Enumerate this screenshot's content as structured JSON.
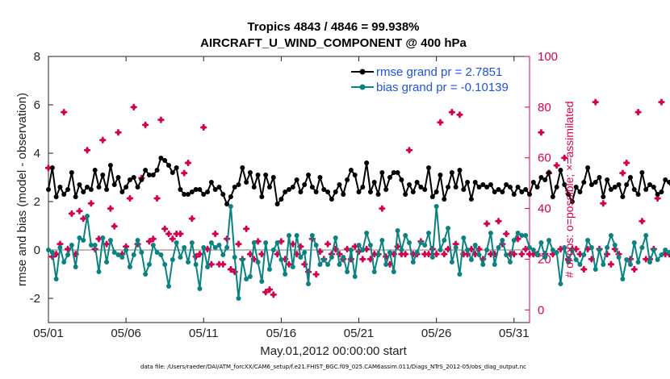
{
  "chart_data": {
    "type": "line",
    "title": "Tropics 4843 / 4846 = 99.938%",
    "subtitle": "AIRCRAFT_U_WIND_COMPONENT @ 400 hPa",
    "xlabel": "May.01,2012 00:00:00 start",
    "ylabel": "rmse and bias (model - observation)",
    "y2label": "# of obs: o=possible; ×=assimilated",
    "xlim": [
      1,
      32
    ],
    "ylim": [
      -3,
      8
    ],
    "y2lim": [
      -5,
      100
    ],
    "x_ticks": [
      1,
      6,
      11,
      16,
      21,
      26,
      31
    ],
    "x_tick_labels": [
      "05/01",
      "05/06",
      "05/11",
      "05/16",
      "05/21",
      "05/26",
      "05/31"
    ],
    "y_ticks": [
      "-2",
      "0",
      "2",
      "4",
      "6",
      "8"
    ],
    "y2_ticks": [
      "0",
      "20",
      "40",
      "60",
      "80",
      "100"
    ],
    "legend_position": "top-right",
    "series": [
      {
        "name": "rmse grand pr = 2.7851",
        "color": "#000000",
        "x_start": 1.0,
        "x_step": 0.25,
        "values": [
          2.5,
          3.4,
          2.2,
          2.6,
          2.3,
          2.5,
          3.2,
          2.2,
          2.7,
          2.4,
          2.6,
          2.5,
          3.3,
          2.6,
          3.1,
          2.5,
          3.5,
          2.7,
          3.0,
          2.4,
          2.6,
          2.9,
          3.0,
          2.6,
          2.9,
          3.3,
          3.1,
          3.1,
          3.3,
          3.8,
          3.7,
          3.5,
          3.2,
          3.4,
          2.5,
          2.3,
          2.3,
          2.4,
          2.5,
          2.5,
          2.3,
          2.4,
          2.8,
          2.5,
          2.6,
          2.3,
          1.9,
          2.2,
          2.6,
          2.7,
          3.4,
          2.8,
          3.2,
          2.6,
          3.1,
          2.2,
          3.1,
          2.6,
          3.0,
          1.9,
          2.1,
          2.4,
          2.5,
          2.6,
          2.9,
          2.4,
          2.7,
          3.1,
          2.6,
          2.4,
          3.0,
          2.5,
          2.4,
          2.1,
          2.4,
          2.7,
          2.3,
          2.9,
          3.3,
          3.1,
          2.4,
          2.6,
          3.6,
          2.4,
          2.8,
          2.3,
          3.2,
          2.5,
          3.0,
          3.2,
          3.2,
          2.9,
          2.3,
          2.7,
          2.4,
          2.8,
          2.6,
          2.5,
          3.4,
          2.2,
          2.4,
          3.1,
          2.1,
          2.6,
          3.2,
          2.6,
          3.3,
          2.5,
          2.8,
          2.1,
          2.8,
          2.6,
          2.7,
          2.6,
          2.7,
          2.4,
          2.5,
          2.4,
          2.7,
          2.6,
          2.3,
          2.6,
          2.4,
          2.5,
          2.3,
          2.8,
          2.6,
          3.0,
          2.9,
          3.2,
          2.2,
          2.6,
          3.3,
          2.7,
          2.3,
          2.0,
          2.6,
          2.4,
          2.8,
          3.4,
          2.7,
          2.8,
          3.0,
          2.2,
          2.9,
          2.5,
          2.6,
          2.7,
          2.2,
          2.7,
          3.0,
          2.5,
          2.3,
          3.2,
          2.5,
          2.7,
          2.6,
          2.3,
          2.4,
          2.9,
          2.8,
          2.4,
          2.9,
          2.8,
          2.4,
          3.1,
          2.5,
          3.2,
          2.9,
          3.4,
          2.8,
          3.8,
          2.9,
          3.0,
          2.7,
          2.5,
          3.5,
          3.7,
          3.0,
          3.2,
          3.9,
          3.0,
          3.6,
          3.2,
          2.7,
          2.1,
          2.3,
          2.2,
          2.5,
          2.6,
          2.6
        ]
      },
      {
        "name": "bias grand pr = -0.10139",
        "color": "#0a8282",
        "x_start": 1.0,
        "x_step": 0.25,
        "values": [
          0.0,
          -0.1,
          -1.2,
          0.1,
          -0.5,
          -0.2,
          0.2,
          -0.7,
          0.5,
          0.4,
          1.4,
          0.2,
          0.2,
          -0.9,
          0.5,
          -0.5,
          0.4,
          -0.1,
          -0.2,
          -0.3,
          0.0,
          -0.7,
          -0.2,
          0.4,
          -0.1,
          -1.0,
          -0.6,
          0.2,
          -0.1,
          -0.2,
          -0.6,
          -1.5,
          -0.4,
          0.3,
          -0.3,
          0.1,
          -0.5,
          0.3,
          -0.6,
          -1.6,
          0.1,
          -0.7,
          0.3,
          0.1,
          0.2,
          -0.2,
          0.1,
          1.8,
          -0.3,
          -2.0,
          -0.4,
          -1.2,
          -1.1,
          0.3,
          -0.5,
          -1.3,
          0.3,
          -0.8,
          0.0,
          0.3,
          -0.4,
          -1.0,
          0.6,
          -0.7,
          0.6,
          -0.3,
          -0.1,
          -1.4,
          0.6,
          0.2,
          -0.6,
          -0.4,
          -0.6,
          -0.3,
          0.5,
          -0.6,
          -0.3,
          -0.9,
          0.0,
          -1.1,
          0.2,
          0.0,
          0.7,
          0.2,
          -0.9,
          -0.2,
          0.4,
          -0.6,
          -0.1,
          -0.9,
          0.8,
          0.0,
          0.6,
          0.3,
          -0.5,
          -0.1,
          0.3,
          0.2,
          0.7,
          -0.3,
          1.8,
          0.0,
          0.4,
          0.9,
          -0.5,
          0.1,
          -1.0,
          0.5,
          0.0,
          -0.4,
          0.2,
          -0.2,
          -0.6,
          0.0,
          0.7,
          -0.6,
          0.1,
          0.4,
          -0.2,
          -0.5,
          0.4,
          0.7,
          0.6,
          0.6,
          0.1,
          0.0,
          -0.2,
          0.3,
          -0.3,
          0.4,
          0.0,
          -0.1,
          -1.4,
          0.1,
          -0.5,
          0.0,
          -0.4,
          -0.6,
          -0.2,
          0.4,
          0.1,
          -0.8,
          0.0,
          -0.6,
          0.1,
          0.6,
          0.2,
          -0.3,
          -1.2,
          -0.4,
          -0.6,
          0.3,
          -0.5,
          0.1,
          0.6,
          -0.5,
          0.0,
          -0.4,
          -0.2,
          0.0,
          -0.1,
          0.2,
          -0.4,
          1.4,
          0.1,
          -0.6,
          0.0,
          0.3,
          -0.2,
          -0.1,
          -0.3,
          1.4,
          0.8,
          0.2,
          -0.5,
          0.0,
          0.8,
          -0.4,
          -0.8,
          0.4,
          -0.3,
          -0.7,
          -2.3,
          0.0,
          -0.2,
          -1.0,
          -0.1,
          0.6,
          0.0,
          -0.4,
          0.2,
          0.0,
          -0.4,
          -0.3
        ]
      },
      {
        "name": "obs possible/assimilated",
        "color": "#d6004f",
        "x_start": 1.0,
        "x_step": 0.25,
        "values": [
          56,
          21,
          22,
          26,
          78,
          24,
          38,
          22,
          39,
          36,
          63,
          42,
          24,
          28,
          67,
          26,
          40,
          33,
          70,
          22,
          25,
          44,
          80,
          26,
          52,
          73,
          27,
          28,
          44,
          75,
          32,
          30,
          28,
          30,
          30,
          54,
          58,
          36,
          21,
          22,
          72,
          24,
          18,
          30,
          18,
          18,
          28,
          16,
          15,
          26,
          20,
          32,
          22,
          20,
          27,
          22,
          7,
          8,
          6,
          22,
          27,
          20,
          18,
          26,
          22,
          25,
          18,
          15,
          28,
          14,
          23,
          20,
          26,
          22,
          24,
          22,
          20,
          24,
          20,
          25,
          23,
          20,
          24,
          20,
          22,
          22,
          40,
          21,
          18,
          22,
          25,
          22,
          22,
          63,
          22,
          22,
          27,
          22,
          22,
          24,
          22,
          74,
          22,
          24,
          78,
          26,
          77,
          22,
          22,
          24,
          22,
          24,
          20,
          34,
          22,
          22,
          35,
          26,
          30,
          22,
          22,
          28,
          22,
          24,
          22,
          22,
          22,
          70,
          22,
          54,
          22,
          57,
          24,
          60,
          20,
          24,
          24,
          22,
          16,
          24,
          20,
          82,
          24,
          42,
          22,
          18,
          24,
          22,
          54,
          58,
          20,
          16,
          78,
          35,
          20,
          20,
          24,
          44,
          82,
          22,
          22,
          22,
          22,
          20,
          14,
          36,
          30,
          77,
          20,
          18,
          22,
          20,
          15,
          24,
          22,
          60,
          40,
          12,
          22,
          22,
          18,
          14,
          24,
          22,
          0,
          52,
          22,
          22,
          22,
          22,
          22
        ]
      }
    ],
    "zero_line": 0
  },
  "footer": "data file: /Users/raeder/DAI/ATM_forcXX/CAM6_setup/f.e21.FHIST_BGC.f09_025.CAM6assim.011/Diags_NTrS_2012-05/obs_diag_output.nc"
}
